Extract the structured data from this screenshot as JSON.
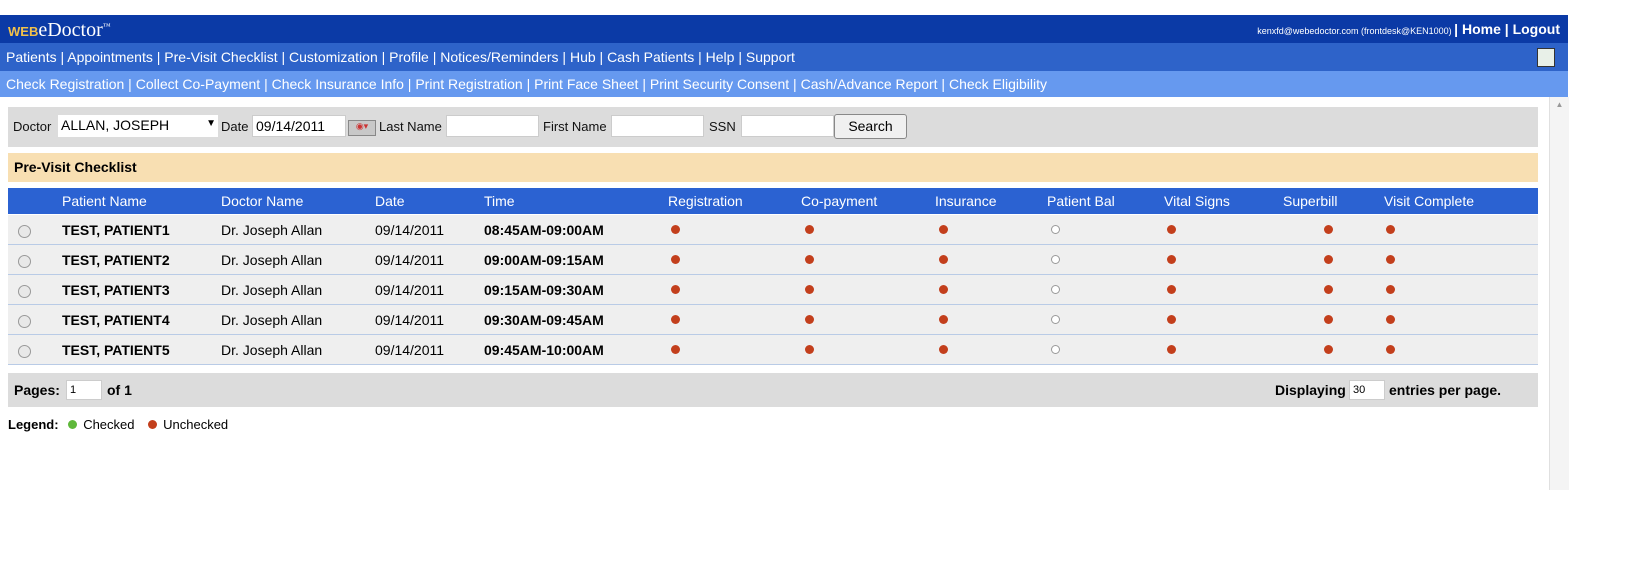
{
  "app": {
    "logo_prefix": "WEB",
    "logo_main": "eDoctor",
    "logo_tm": "™",
    "user": "kenxfd@webedoctor.com (frontdesk@KEN1000)",
    "home": "Home",
    "logout": "Logout"
  },
  "nav": [
    "Patients",
    "Appointments",
    "Pre-Visit Checklist",
    "Customization",
    "Profile",
    "Notices/Reminders",
    "Hub",
    "Cash Patients",
    "Help",
    "Support"
  ],
  "subnav": [
    "Check Registration",
    "Collect Co-Payment",
    "Check Insurance Info",
    "Print Registration",
    "Print Face Sheet",
    "Print Security Consent",
    "Cash/Advance Report",
    "Check Eligibility"
  ],
  "filter": {
    "doctor_label": "Doctor",
    "doctor_value": "ALLAN, JOSEPH",
    "date_label": "Date",
    "date_value": "09/14/2011",
    "last_label": "Last Name",
    "last_value": "",
    "first_label": "First Name",
    "first_value": "",
    "ssn_label": "SSN",
    "ssn_value": "",
    "search": "Search"
  },
  "section_title": "Pre-Visit Checklist",
  "columns": [
    "Patient Name",
    "Doctor Name",
    "Date",
    "Time",
    "Registration",
    "Co-payment",
    "Insurance",
    "Patient Bal",
    "Vital Signs",
    "Superbill",
    "Visit Complete"
  ],
  "rows": [
    {
      "patient": "TEST, PATIENT1",
      "doctor": "Dr. Joseph Allan",
      "date": "09/14/2011",
      "time": "08:45AM-09:00AM",
      "status": [
        "unchecked",
        "unchecked",
        "unchecked",
        "empty",
        "unchecked",
        "unchecked",
        "unchecked"
      ]
    },
    {
      "patient": "TEST, PATIENT2",
      "doctor": "Dr. Joseph Allan",
      "date": "09/14/2011",
      "time": "09:00AM-09:15AM",
      "status": [
        "unchecked",
        "unchecked",
        "unchecked",
        "empty",
        "unchecked",
        "unchecked",
        "unchecked"
      ]
    },
    {
      "patient": "TEST, PATIENT3",
      "doctor": "Dr. Joseph Allan",
      "date": "09/14/2011",
      "time": "09:15AM-09:30AM",
      "status": [
        "unchecked",
        "unchecked",
        "unchecked",
        "empty",
        "unchecked",
        "unchecked",
        "unchecked"
      ]
    },
    {
      "patient": "TEST, PATIENT4",
      "doctor": "Dr. Joseph Allan",
      "date": "09/14/2011",
      "time": "09:30AM-09:45AM",
      "status": [
        "unchecked",
        "unchecked",
        "unchecked",
        "empty",
        "unchecked",
        "unchecked",
        "unchecked"
      ]
    },
    {
      "patient": "TEST, PATIENT5",
      "doctor": "Dr. Joseph Allan",
      "date": "09/14/2011",
      "time": "09:45AM-10:00AM",
      "status": [
        "unchecked",
        "unchecked",
        "unchecked",
        "empty",
        "unchecked",
        "unchecked",
        "unchecked"
      ]
    }
  ],
  "pager": {
    "pages_label": "Pages:",
    "page": "1",
    "of": "of 1",
    "displaying": "Displaying",
    "per_page": "30",
    "entries": "entries per page."
  },
  "legend": {
    "label": "Legend:",
    "checked": "Checked",
    "unchecked": "Unchecked"
  },
  "colors": {
    "checked": "#5fb83a",
    "unchecked": "#c33f1c",
    "header": "#2b62d2",
    "topbar": "#0b3aa6"
  }
}
